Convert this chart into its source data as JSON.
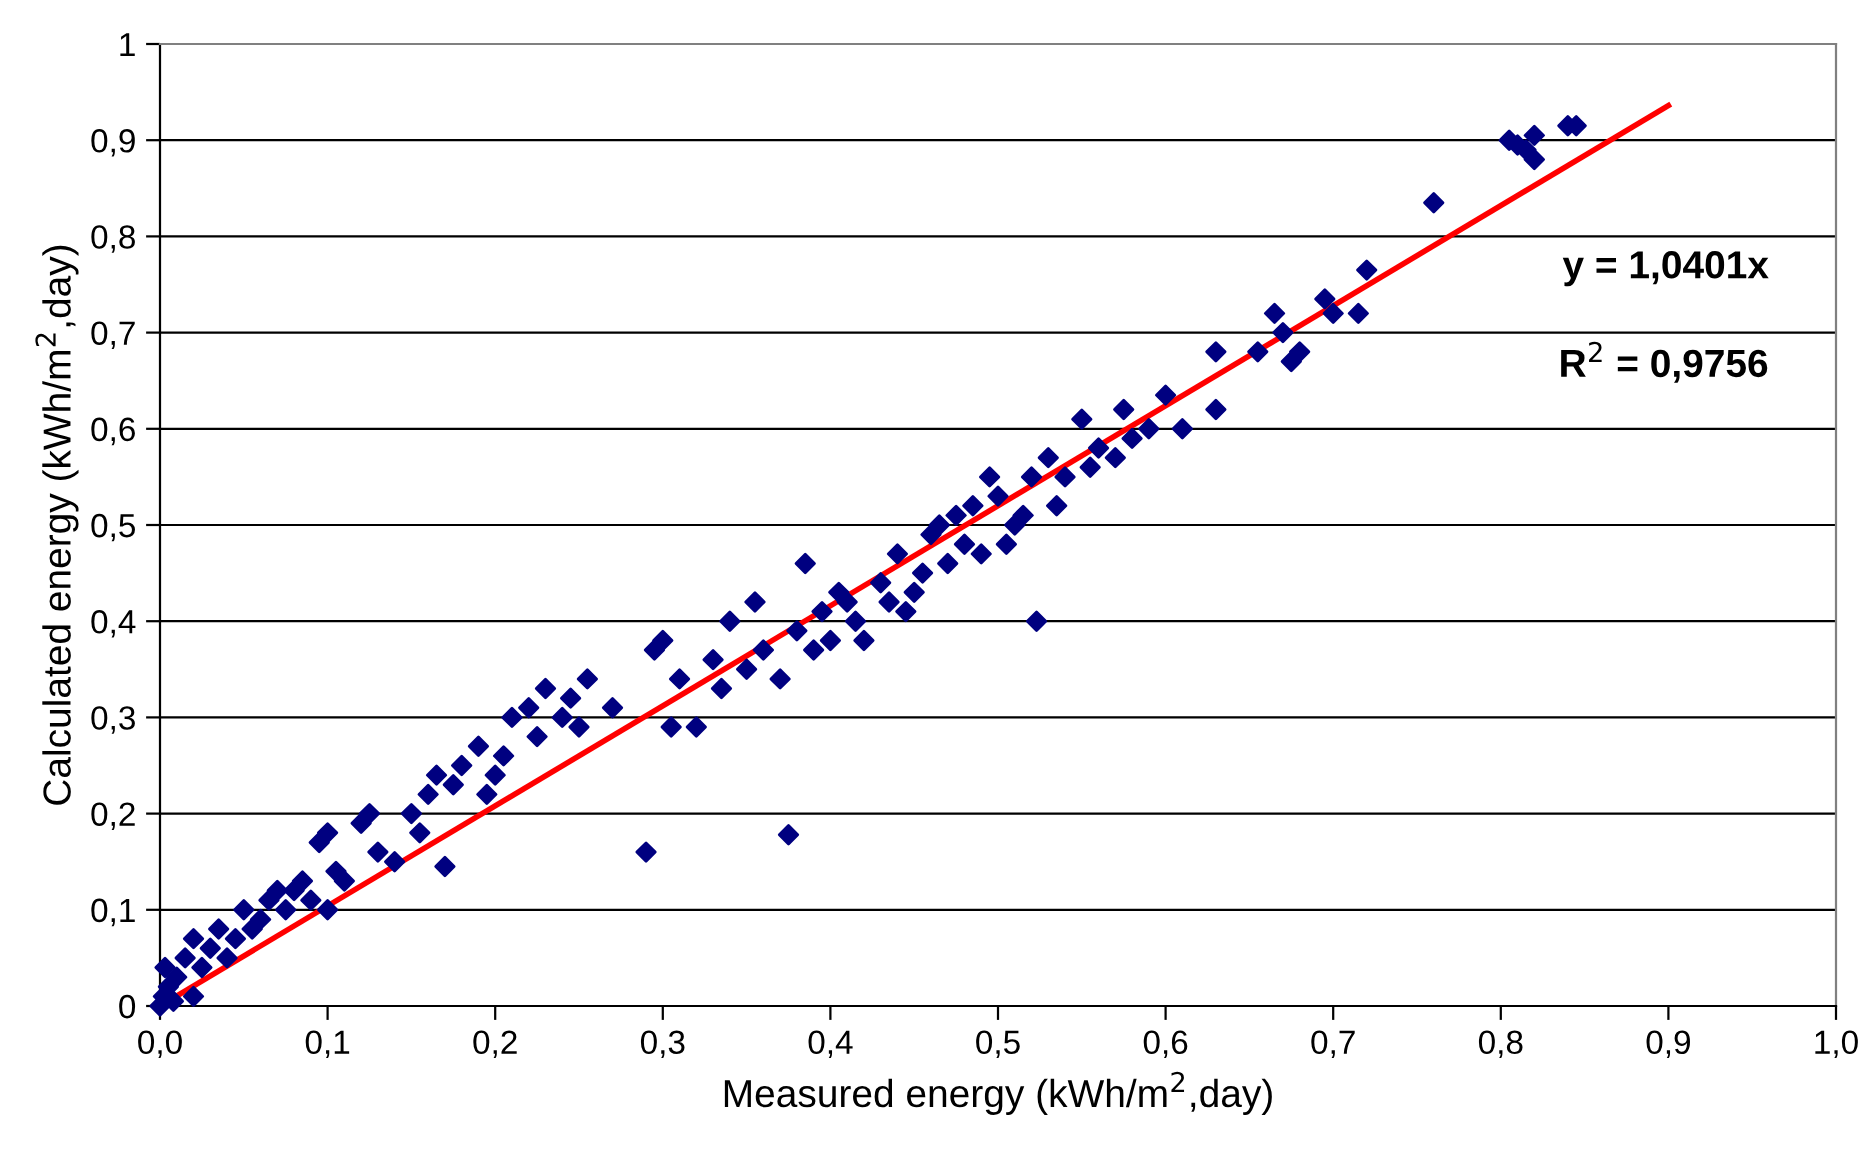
{
  "chart_data": {
    "type": "scatter",
    "xlabel": "Measured energy (kWh/m$^{2}$,day)",
    "ylabel": "Calculated energy (kWh/m$^{2}$,day)",
    "annotations": [
      "y = 1,0401x",
      "R$^{2}$ = 0,9756"
    ],
    "xlim": [
      0,
      1
    ],
    "ylim": [
      0,
      1
    ],
    "xticks": [
      {
        "value": 0,
        "label": "0,0"
      },
      {
        "value": 0.1,
        "label": "0,1"
      },
      {
        "value": 0.2,
        "label": "0,2"
      },
      {
        "value": 0.3,
        "label": "0,3"
      },
      {
        "value": 0.4,
        "label": "0,4"
      },
      {
        "value": 0.5,
        "label": "0,5"
      },
      {
        "value": 0.6,
        "label": "0,6"
      },
      {
        "value": 0.7,
        "label": "0,7"
      },
      {
        "value": 0.8,
        "label": "0,8"
      },
      {
        "value": 0.9,
        "label": "0,9"
      },
      {
        "value": 1,
        "label": "1,0"
      }
    ],
    "yticks": [
      0,
      {
        "value": 0.1,
        "label": "0,1"
      },
      {
        "value": 0.2,
        "label": "0,2"
      },
      {
        "value": 0.3,
        "label": "0,3"
      },
      {
        "value": 0.4,
        "label": "0,4"
      },
      {
        "value": 0.5,
        "label": "0,5"
      },
      {
        "value": 0.6,
        "label": "0,6"
      },
      {
        "value": 0.7,
        "label": "0,7"
      },
      {
        "value": 0.8,
        "label": "0,8"
      },
      {
        "value": 0.9,
        "label": "0,9"
      },
      1
    ],
    "grid": "y",
    "marker": "diamond",
    "series": [
      {
        "color": "#000080",
        "x": [
          0,
          0.002,
          0.005,
          0.003,
          0.008,
          0.01,
          0.015,
          0.02,
          0.02,
          0.025,
          0.03,
          0.035,
          0.04,
          0.045,
          0.05,
          0.055,
          0.06,
          0.065,
          0.07,
          0.075,
          0.08,
          0.085,
          0.09,
          0.095,
          0.1,
          0.1,
          0.105,
          0.11,
          0.12,
          0.125,
          0.13,
          0.14,
          0.15,
          0.155,
          0.16,
          0.165,
          0.17,
          0.175,
          0.18,
          0.19,
          0.195,
          0.2,
          0.205,
          0.21,
          0.22,
          0.225,
          0.23,
          0.24,
          0.245,
          0.25,
          0.255,
          0.27,
          0.29,
          0.295,
          0.3,
          0.305,
          0.31,
          0.32,
          0.33,
          0.335,
          0.34,
          0.35,
          0.355,
          0.36,
          0.37,
          0.375,
          0.38,
          0.385,
          0.39,
          0.395,
          0.4,
          0.405,
          0.41,
          0.415,
          0.42,
          0.43,
          0.435,
          0.44,
          0.445,
          0.45,
          0.455,
          0.46,
          0.465,
          0.47,
          0.475,
          0.48,
          0.485,
          0.49,
          0.495,
          0.5,
          0.505,
          0.51,
          0.515,
          0.52,
          0.523,
          0.53,
          0.535,
          0.54,
          0.55,
          0.555,
          0.56,
          0.57,
          0.575,
          0.58,
          0.59,
          0.6,
          0.61,
          0.63,
          0.63,
          0.655,
          0.665,
          0.67,
          0.675,
          0.68,
          0.695,
          0.7,
          0.715,
          0.72,
          0.76,
          0.805,
          0.81,
          0.815,
          0.82,
          0.82,
          0.84,
          0.845
        ],
        "values": [
          0,
          0.01,
          0.02,
          0.04,
          0.005,
          0.03,
          0.05,
          0.01,
          0.07,
          0.04,
          0.06,
          0.08,
          0.05,
          0.07,
          0.1,
          0.08,
          0.09,
          0.11,
          0.12,
          0.1,
          0.12,
          0.13,
          0.11,
          0.17,
          0.1,
          0.18,
          0.14,
          0.13,
          0.19,
          0.2,
          0.16,
          0.15,
          0.2,
          0.18,
          0.22,
          0.24,
          0.145,
          0.23,
          0.25,
          0.27,
          0.22,
          0.24,
          0.26,
          0.3,
          0.31,
          0.28,
          0.33,
          0.3,
          0.32,
          0.29,
          0.34,
          0.31,
          0.16,
          0.37,
          0.38,
          0.29,
          0.34,
          0.29,
          0.36,
          0.33,
          0.4,
          0.35,
          0.42,
          0.37,
          0.34,
          0.178,
          0.39,
          0.46,
          0.37,
          0.41,
          0.38,
          0.43,
          0.42,
          0.4,
          0.38,
          0.44,
          0.42,
          0.47,
          0.41,
          0.43,
          0.45,
          0.49,
          0.5,
          0.46,
          0.51,
          0.48,
          0.52,
          0.47,
          0.55,
          0.53,
          0.48,
          0.5,
          0.51,
          0.55,
          0.4,
          0.57,
          0.52,
          0.55,
          0.61,
          0.56,
          0.58,
          0.57,
          0.62,
          0.59,
          0.6,
          0.635,
          0.6,
          0.62,
          0.68,
          0.68,
          0.72,
          0.7,
          0.67,
          0.68,
          0.735,
          0.72,
          0.72,
          0.765,
          0.835,
          0.9,
          0.895,
          0.89,
          0.905,
          0.88,
          0.915,
          0.915
        ]
      },
      {
        "type": "line",
        "color": "#ff0000",
        "marker": "none",
        "x": [
          0,
          0.9
        ],
        "values": [
          0,
          0.936
        ]
      }
    ]
  }
}
